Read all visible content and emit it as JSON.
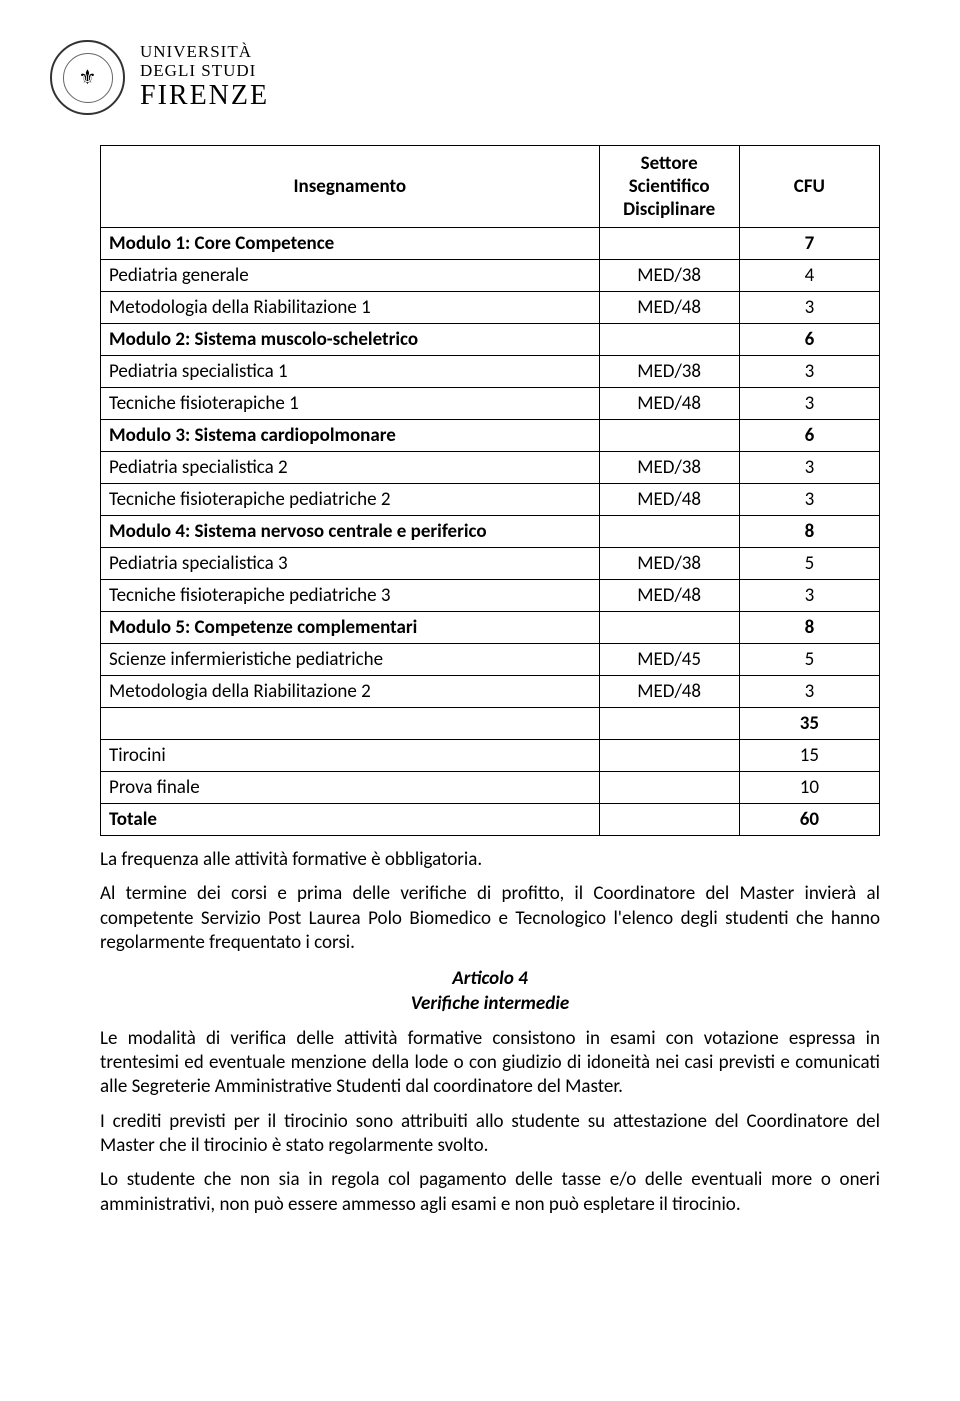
{
  "logo": {
    "line1": "UNIVERSITÀ",
    "line2": "DEGLI STUDI",
    "line3": "FIRENZE",
    "seal_glyph": "⚜"
  },
  "table": {
    "header_color": "#000000",
    "border_color": "#000000",
    "columns": {
      "name": "Insegnamento",
      "sector": "Settore Scientifico Disciplinare",
      "cfu": "CFU"
    },
    "rows": [
      {
        "name": "Modulo 1: Core Competence",
        "sector": "",
        "cfu": "7",
        "bold": true
      },
      {
        "name": "Pediatria generale",
        "sector": "MED/38",
        "cfu": "4",
        "bold": false
      },
      {
        "name": "Metodologia della Riabilitazione 1",
        "sector": "MED/48",
        "cfu": "3",
        "bold": false
      },
      {
        "name": "Modulo 2: Sistema muscolo-scheletrico",
        "sector": "",
        "cfu": "6",
        "bold": true
      },
      {
        "name": "Pediatria specialistica 1",
        "sector": "MED/38",
        "cfu": "3",
        "bold": false
      },
      {
        "name": "Tecniche fisioterapiche 1",
        "sector": "MED/48",
        "cfu": "3",
        "bold": false
      },
      {
        "name": "Modulo 3: Sistema cardiopolmonare",
        "sector": "",
        "cfu": "6",
        "bold": true
      },
      {
        "name": "Pediatria specialistica 2",
        "sector": "MED/38",
        "cfu": "3",
        "bold": false
      },
      {
        "name": "Tecniche fisioterapiche pediatriche 2",
        "sector": "MED/48",
        "cfu": "3",
        "bold": false
      },
      {
        "name": "Modulo 4: Sistema nervoso centrale e periferico",
        "sector": "",
        "cfu": "8",
        "bold": true
      },
      {
        "name": "Pediatria specialistica 3",
        "sector": "MED/38",
        "cfu": "5",
        "bold": false
      },
      {
        "name": "Tecniche fisioterapiche pediatriche 3",
        "sector": "MED/48",
        "cfu": "3",
        "bold": false
      },
      {
        "name": "Modulo 5: Competenze complementari",
        "sector": "",
        "cfu": "8",
        "bold": true
      },
      {
        "name": "Scienze infermieristiche pediatriche",
        "sector": "MED/45",
        "cfu": "5",
        "bold": false
      },
      {
        "name": "Metodologia della Riabilitazione 2",
        "sector": "MED/48",
        "cfu": "3",
        "bold": false
      },
      {
        "name": "",
        "sector": "",
        "cfu": "35",
        "bold": true
      },
      {
        "name": "Tirocini",
        "sector": "",
        "cfu": "15",
        "bold": false
      },
      {
        "name": "Prova finale",
        "sector": "",
        "cfu": "10",
        "bold": false
      },
      {
        "name": "Totale",
        "sector": "",
        "cfu": "60",
        "bold": true
      }
    ]
  },
  "paragraphs": {
    "p1": "La frequenza alle attività formative è obbligatoria.",
    "p2": "Al termine dei corsi e prima delle verifiche di profitto, il Coordinatore del Master invierà al competente Servizio Post Laurea Polo Biomedico e Tecnologico l'elenco degli studenti che hanno regolarmente frequentato i corsi."
  },
  "article4": {
    "title": "Articolo 4",
    "subtitle": "Verifiche intermedie",
    "p1": "Le modalità di verifica delle attività formative consistono in esami con votazione espressa in trentesimi ed eventuale menzione della lode o con giudizio di idoneità nei casi previsti e comunicati alle Segreterie Amministrative Studenti dal coordinatore del Master.",
    "p2": "I crediti previsti per il tirocinio sono attribuiti allo studente su attestazione del Coordinatore del Master che il tirocinio è stato regolarmente svolto.",
    "p3": "Lo studente che non sia in regola col pagamento delle tasse e/o delle eventuali more o oneri amministrativi, non può essere ammesso agli esami e non può espletare il tirocinio."
  },
  "styling": {
    "body_font": "Calibri, Arial, sans-serif",
    "body_fontsize": 19,
    "text_color": "#000000",
    "background_color": "#ffffff",
    "table_border_color": "#000000"
  }
}
